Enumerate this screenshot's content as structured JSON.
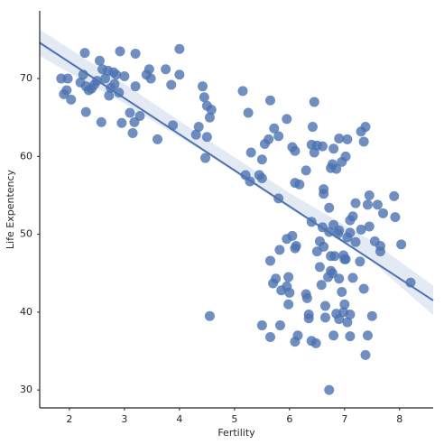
{
  "chart_data": {
    "type": "scatter",
    "xlabel": "Fertility",
    "ylabel": "Life Expentency",
    "color": "#4c72b0",
    "xlim": [
      1.46,
      8.61
    ],
    "ylim": [
      27.7,
      78.7
    ],
    "xticks": [
      2,
      3,
      4,
      5,
      6,
      7,
      8
    ],
    "yticks": [
      30,
      40,
      50,
      60,
      70
    ],
    "regression": {
      "x": [
        1.46,
        8.61
      ],
      "y": [
        74.6,
        41.5
      ]
    },
    "ci": {
      "x": [
        1.46,
        3,
        4.5,
        6,
        7.5,
        8.61
      ],
      "lower": [
        72.9,
        66.8,
        60.3,
        53.3,
        46.5,
        39.6
      ],
      "upper": [
        76.3,
        69.3,
        62.2,
        55.3,
        49.1,
        43.4
      ]
    },
    "x": [
      1.85,
      1.9,
      1.95,
      1.97,
      2.03,
      2.2,
      2.25,
      2.28,
      2.3,
      2.3,
      2.35,
      2.4,
      2.45,
      2.5,
      2.55,
      2.58,
      2.6,
      2.65,
      2.7,
      2.72,
      2.75,
      2.8,
      2.82,
      2.85,
      2.9,
      2.92,
      2.95,
      3.0,
      3.1,
      3.15,
      3.18,
      3.2,
      3.2,
      3.28,
      3.4,
      3.45,
      3.48,
      3.6,
      3.75,
      3.85,
      3.88,
      4.0,
      4.0,
      4.3,
      4.35,
      4.42,
      4.45,
      4.47,
      4.5,
      4.5,
      4.55,
      4.58,
      4.55,
      5.15,
      5.25,
      5.3,
      5.2,
      5.28,
      5.45,
      5.5,
      5.5,
      5.55,
      5.62,
      5.65,
      5.72,
      5.8,
      5.95,
      6.05,
      6.1,
      6.1,
      6.18,
      6.3,
      6.4,
      6.42,
      6.45,
      6.45,
      6.5,
      6.6,
      6.62,
      6.62,
      6.72,
      6.75,
      6.78,
      6.8,
      6.85,
      6.9,
      6.95,
      7.02,
      7.05,
      7.2,
      7.3,
      7.35,
      7.38,
      7.1,
      7.15,
      7.42,
      7.45,
      7.6,
      7.7,
      7.9,
      7.92,
      7.65,
      7.65,
      8.03,
      8.2,
      7.45,
      7.55,
      7.3,
      7.1,
      5.8,
      5.82,
      5.65,
      5.75,
      5.7,
      5.85,
      5.95,
      6.0,
      5.98,
      5.98,
      5.5,
      5.65,
      5.83,
      5.95,
      6.05,
      6.12,
      6.1,
      6.1,
      6.15,
      6.3,
      6.32,
      6.35,
      6.35,
      6.4,
      6.4,
      6.48,
      6.5,
      6.55,
      6.55,
      6.58,
      6.6,
      6.62,
      6.65,
      6.65,
      6.7,
      6.72,
      6.75,
      6.75,
      6.78,
      6.8,
      6.82,
      6.85,
      6.88,
      6.9,
      6.9,
      6.95,
      6.98,
      6.98,
      7.0,
      7.02,
      7.05,
      7.05,
      7.1,
      7.15,
      7.1,
      7.28,
      7.35,
      7.38,
      7.42,
      7.5,
      6.72,
      7.2,
      6.9,
      6.8,
      7.0
    ],
    "y": [
      70,
      68,
      68.5,
      70,
      67.3,
      69.5,
      70.5,
      73.3,
      65.7,
      69,
      68.5,
      68.7,
      69.2,
      69.7,
      72.3,
      64.4,
      71.2,
      70,
      71,
      67.8,
      68.8,
      70.8,
      69.3,
      70.5,
      68.2,
      73.5,
      64.3,
      70.3,
      65.6,
      63,
      64.4,
      69,
      73.2,
      65.2,
      70.5,
      71.2,
      70,
      62.2,
      71.2,
      69.2,
      64,
      70.5,
      73.8,
      62.8,
      63.8,
      69,
      67.6,
      59.8,
      62.5,
      66.5,
      65,
      66,
      39.5,
      68.4,
      65.6,
      60.5,
      57.6,
      56.8,
      57.6,
      59.6,
      57.2,
      61.6,
      62.2,
      67.2,
      63.6,
      62.6,
      64.8,
      61.2,
      60.7,
      56.6,
      56.4,
      58.2,
      61.5,
      63.8,
      60.5,
      67,
      61.4,
      61.3,
      55.8,
      55.2,
      53.4,
      58.5,
      59,
      61,
      58.4,
      62.3,
      59.3,
      60,
      62.2,
      54,
      63.2,
      61.9,
      63.8,
      51.8,
      52.3,
      53.8,
      55,
      53.8,
      52.7,
      54.9,
      52.2,
      48.5,
      47.8,
      48.7,
      43.8,
      51,
      49.1,
      50.6,
      50.2,
      54.6,
      48,
      46.6,
      44.3,
      43.7,
      42.8,
      43.3,
      42.5,
      44.5,
      41,
      38.3,
      36.8,
      38.3,
      49.4,
      49.8,
      48.5,
      48.2,
      36.2,
      37,
      42.3,
      41.8,
      39.7,
      39.2,
      51.6,
      36.3,
      36,
      47.8,
      49.1,
      45.8,
      43.5,
      50.9,
      48.4,
      40.8,
      39.3,
      44.5,
      50.3,
      47.2,
      45.3,
      45,
      37,
      47.2,
      39.8,
      50.1,
      44.3,
      39.1,
      42.6,
      47.3,
      40,
      46.8,
      46.8,
      49.6,
      38.7,
      39.7,
      44.4,
      36.9,
      46.5,
      43,
      34.5,
      37,
      39.5,
      30,
      49,
      50.5,
      51.2,
      41
    ]
  }
}
